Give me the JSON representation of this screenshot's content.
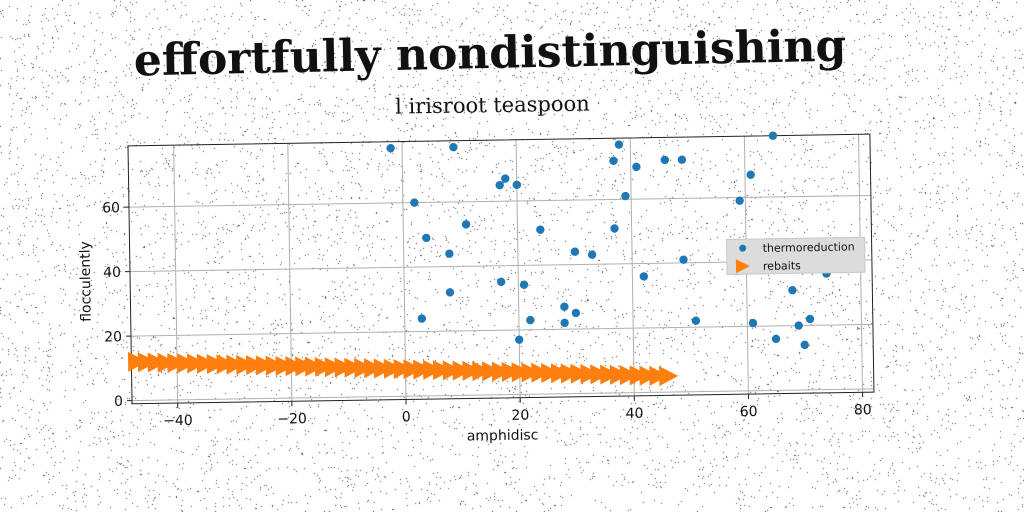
{
  "page_title": "effortfully nondistinguishing",
  "chart_data": {
    "type": "scatter",
    "title": "l irisroot teaspoon",
    "xlabel": "amphidisc",
    "ylabel": "flocculently",
    "xlim": [
      -48,
      82
    ],
    "ylim": [
      -1,
      79
    ],
    "xticks": [
      -40,
      -20,
      0,
      20,
      40,
      60,
      80
    ],
    "yticks": [
      0,
      20,
      40,
      60
    ],
    "grid": true,
    "legend_position": "right",
    "series": [
      {
        "name": "thermoreduction",
        "marker": "circle",
        "color": "#1f77b4",
        "points": [
          [
            -2,
            77
          ],
          [
            9,
            77
          ],
          [
            2,
            60
          ],
          [
            4,
            49
          ],
          [
            8,
            44
          ],
          [
            11,
            53
          ],
          [
            8,
            32
          ],
          [
            3,
            24
          ],
          [
            18,
            67
          ],
          [
            17,
            65
          ],
          [
            20,
            65
          ],
          [
            17,
            35
          ],
          [
            21,
            34
          ],
          [
            20,
            17
          ],
          [
            22,
            23
          ],
          [
            24,
            51
          ],
          [
            28,
            22
          ],
          [
            28,
            27
          ],
          [
            30,
            25
          ],
          [
            30,
            44
          ],
          [
            33,
            43
          ],
          [
            37,
            51
          ],
          [
            37,
            72
          ],
          [
            38,
            77
          ],
          [
            39,
            61
          ],
          [
            41,
            70
          ],
          [
            42,
            36
          ],
          [
            46,
            72
          ],
          [
            49,
            72
          ],
          [
            49,
            41
          ],
          [
            51,
            22
          ],
          [
            59,
            59
          ],
          [
            61,
            67
          ],
          [
            61,
            21
          ],
          [
            65,
            79
          ],
          [
            65,
            16
          ],
          [
            68,
            31
          ],
          [
            69,
            20
          ],
          [
            70,
            14
          ],
          [
            71,
            22
          ],
          [
            74,
            36
          ]
        ]
      },
      {
        "name": "rebaits",
        "marker": "triangle-right",
        "color": "#ff7f0e",
        "x_start": -47,
        "x_end": 46,
        "y_start": 12,
        "y_end": 5,
        "count": 55
      }
    ]
  }
}
